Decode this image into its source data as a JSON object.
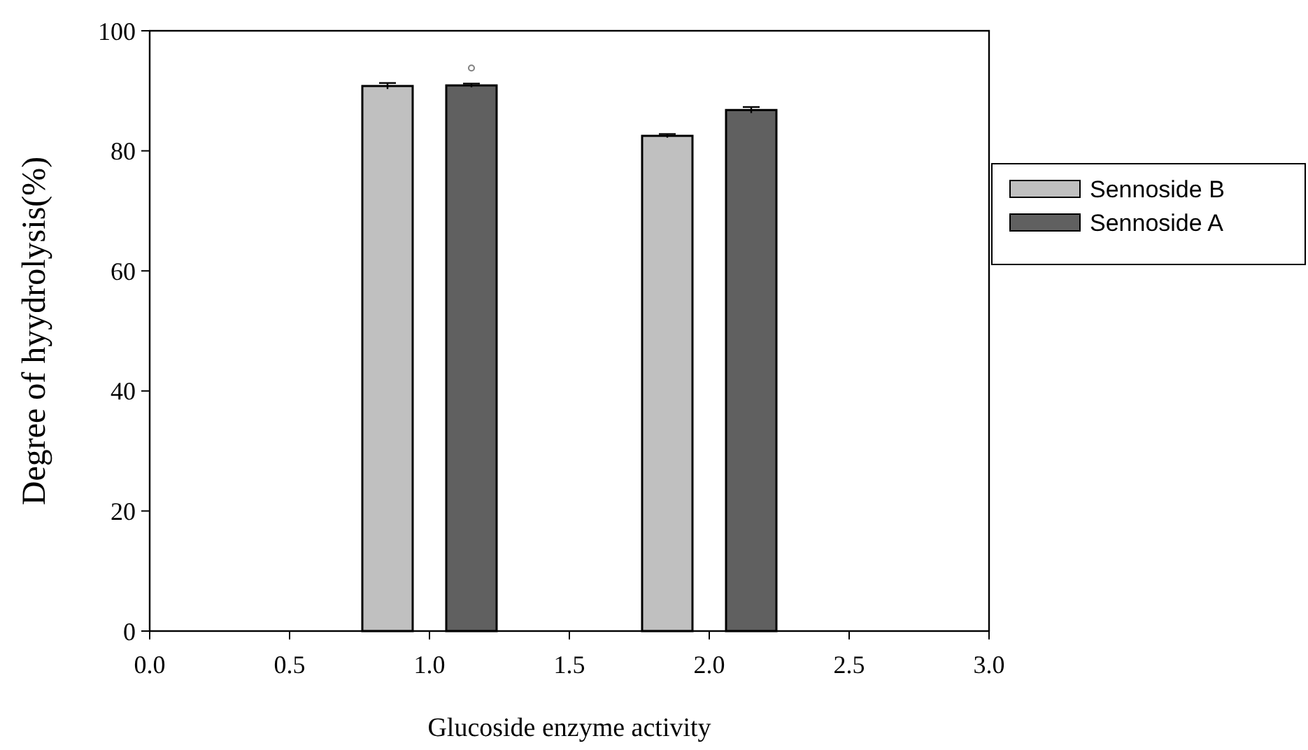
{
  "chart_data": {
    "type": "bar",
    "xlabel": "Glucoside enzyme activity",
    "ylabel": "Degree of hyydrolysis(%)",
    "xlim": [
      0,
      3
    ],
    "xticks": [
      {
        "value": 0,
        "label": "0.0"
      },
      {
        "value": 0.5,
        "label": "0.5"
      },
      {
        "value": 1,
        "label": "1.0"
      },
      {
        "value": 1.5,
        "label": "1.5"
      },
      {
        "value": 2,
        "label": "2.0"
      },
      {
        "value": 2.5,
        "label": "2.5"
      },
      {
        "value": 3,
        "label": "3.0"
      }
    ],
    "ylim": [
      0,
      100
    ],
    "yticks": [
      0,
      20,
      40,
      60,
      80,
      100
    ],
    "legend": "right",
    "grid": false,
    "series": [
      {
        "name": "Sennoside B",
        "color": "#c0c0c0",
        "x": [
          0.85,
          1.85
        ],
        "values": [
          90.8,
          82.5
        ],
        "errors": [
          0.5,
          0.3
        ]
      },
      {
        "name": "Sennoside A",
        "color": "#606060",
        "x": [
          1.15,
          2.15
        ],
        "values": [
          90.9,
          86.8
        ],
        "errors": [
          0.3,
          0.5
        ]
      },
      {
        "type": "scatter",
        "color": "#808080",
        "marker": "circle",
        "x": [
          1.15
        ],
        "values": [
          93.8
        ]
      }
    ]
  }
}
